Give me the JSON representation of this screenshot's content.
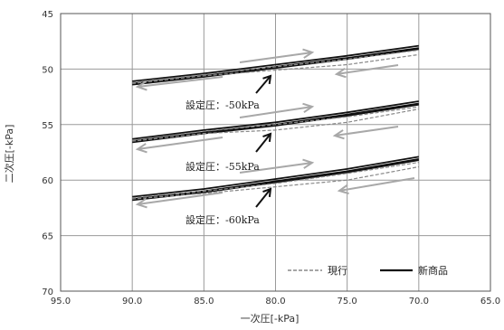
{
  "chart_data": {
    "type": "line",
    "xlabel": "一次圧[-kPa]",
    "ylabel": "二次圧[-kPa]",
    "xlim": [
      95.0,
      65.0
    ],
    "ylim": [
      45,
      70
    ],
    "x_reversed": true,
    "y_reversed": true,
    "x_ticks": [
      "95.0",
      "90.0",
      "85.0",
      "80.0",
      "75.0",
      "70.0",
      "65.0"
    ],
    "y_ticks": [
      "45",
      "50",
      "55",
      "60",
      "65",
      "70"
    ],
    "grid": true,
    "legend_position": "bottom-right",
    "legend": [
      {
        "name": "現行",
        "style": "dashed",
        "color": "#888888"
      },
      {
        "name": "新商品",
        "style": "solid",
        "color": "#111111"
      }
    ],
    "annotations": [
      "設定圧：-50kPa",
      "設定圧：-55kPa",
      "設定圧：-60kPa"
    ],
    "series": [
      {
        "name": "新商品",
        "group": "-50kPa",
        "style": "solid",
        "color": "#111111",
        "x": [
          90,
          85,
          80,
          75,
          70
        ],
        "y": [
          51.1,
          50.4,
          49.6,
          48.8,
          47.9
        ]
      },
      {
        "name": "新商品",
        "group": "-50kPa",
        "style": "solid",
        "color": "#111111",
        "x": [
          90,
          85,
          80,
          75,
          70
        ],
        "y": [
          51.3,
          50.6,
          49.8,
          49.0,
          48.1
        ]
      },
      {
        "name": "新商品",
        "group": "-50kPa",
        "style": "solid",
        "color": "#111111",
        "x": [
          90,
          85,
          80,
          75,
          70
        ],
        "y": [
          51.4,
          50.7,
          49.9,
          49.1,
          48.2
        ]
      },
      {
        "name": "現行",
        "group": "-50kPa",
        "style": "dashed",
        "color": "#888888",
        "x": [
          90,
          85,
          80,
          75,
          70
        ],
        "y": [
          51.2,
          50.5,
          49.8,
          49.1,
          48.3
        ]
      },
      {
        "name": "現行",
        "group": "-50kPa",
        "style": "dashed",
        "color": "#888888",
        "x": [
          90,
          85,
          80,
          75,
          70
        ],
        "y": [
          51.3,
          50.6,
          50.1,
          49.6,
          48.7
        ]
      },
      {
        "name": "新商品",
        "group": "-55kPa",
        "style": "solid",
        "color": "#111111",
        "x": [
          90,
          85,
          80,
          75,
          70
        ],
        "y": [
          56.3,
          55.5,
          54.8,
          53.9,
          52.9
        ]
      },
      {
        "name": "新商品",
        "group": "-55kPa",
        "style": "solid",
        "color": "#111111",
        "x": [
          90,
          85,
          80,
          75,
          70
        ],
        "y": [
          56.5,
          55.7,
          55.0,
          54.1,
          53.1
        ]
      },
      {
        "name": "新商品",
        "group": "-55kPa",
        "style": "solid",
        "color": "#111111",
        "x": [
          90,
          85,
          80,
          75,
          70
        ],
        "y": [
          56.6,
          55.8,
          55.1,
          54.2,
          53.2
        ]
      },
      {
        "name": "現行",
        "group": "-55kPa",
        "style": "dashed",
        "color": "#888888",
        "x": [
          90,
          85,
          80,
          75,
          70
        ],
        "y": [
          56.4,
          55.6,
          55.0,
          54.3,
          53.4
        ]
      },
      {
        "name": "現行",
        "group": "-55kPa",
        "style": "dashed",
        "color": "#888888",
        "x": [
          90,
          85,
          80,
          75,
          70
        ],
        "y": [
          56.5,
          55.8,
          55.5,
          54.8,
          53.6
        ]
      },
      {
        "name": "新商品",
        "group": "-60kPa",
        "style": "solid",
        "color": "#111111",
        "x": [
          90,
          85,
          80,
          75,
          70
        ],
        "y": [
          61.5,
          60.8,
          59.9,
          59.0,
          57.9
        ]
      },
      {
        "name": "新商品",
        "group": "-60kPa",
        "style": "solid",
        "color": "#111111",
        "x": [
          90,
          85,
          80,
          75,
          70
        ],
        "y": [
          61.7,
          61.0,
          60.1,
          59.2,
          58.1
        ]
      },
      {
        "name": "新商品",
        "group": "-60kPa",
        "style": "solid",
        "color": "#111111",
        "x": [
          90,
          85,
          80,
          75,
          70
        ],
        "y": [
          61.8,
          61.1,
          60.2,
          59.3,
          58.2
        ]
      },
      {
        "name": "現行",
        "group": "-60kPa",
        "style": "dashed",
        "color": "#888888",
        "x": [
          90,
          85,
          80,
          75,
          70
        ],
        "y": [
          61.6,
          61.0,
          60.3,
          59.4,
          58.4
        ]
      },
      {
        "name": "現行",
        "group": "-60kPa",
        "style": "dashed",
        "color": "#888888",
        "x": [
          90,
          85,
          80,
          75,
          70
        ],
        "y": [
          61.7,
          61.2,
          60.6,
          60.0,
          58.8
        ]
      }
    ]
  }
}
